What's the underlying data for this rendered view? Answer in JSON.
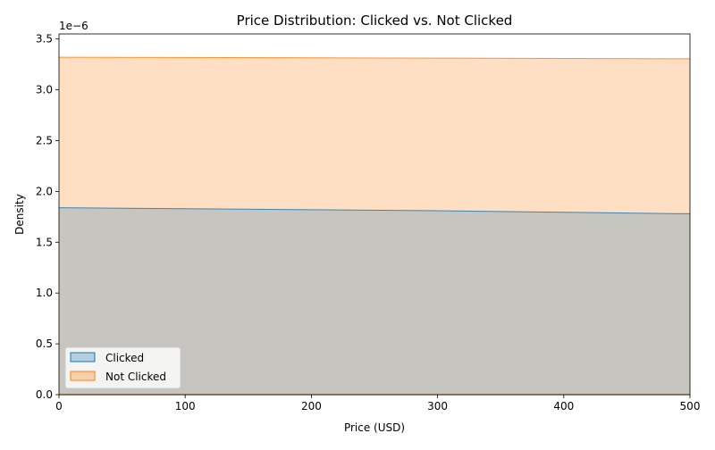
{
  "chart_data": {
    "type": "area",
    "title": "Price Distribution: Clicked vs. Not Clicked",
    "xlabel": "Price (USD)",
    "ylabel": "Density",
    "y_scale_label": "1e−6",
    "xlim": [
      0,
      500
    ],
    "ylim": [
      0,
      3.55
    ],
    "x_ticks": [
      0,
      100,
      200,
      300,
      400,
      500
    ],
    "x_tick_labels": [
      "0",
      "100",
      "200",
      "300",
      "400",
      "500"
    ],
    "y_ticks": [
      0,
      0.5,
      1.0,
      1.5,
      2.0,
      2.5,
      3.0,
      3.5
    ],
    "y_tick_labels": [
      "0.0",
      "0.5",
      "1.0",
      "1.5",
      "2.0",
      "2.5",
      "3.0",
      "3.5"
    ],
    "grid": false,
    "legend_position": "lower-left",
    "series": [
      {
        "name": "Clicked",
        "line_color": "#1f77b4",
        "fill_color": "#1f77b4",
        "x": [
          0,
          100,
          200,
          300,
          400,
          500
        ],
        "values": [
          1.84,
          1.83,
          1.82,
          1.81,
          1.795,
          1.78
        ]
      },
      {
        "name": "Not Clicked",
        "line_color": "#ff7f0e",
        "fill_color": "#ff7f0e",
        "x": [
          0,
          100,
          200,
          300,
          400,
          500
        ],
        "values": [
          3.32,
          3.318,
          3.315,
          3.312,
          3.308,
          3.305
        ]
      }
    ]
  }
}
